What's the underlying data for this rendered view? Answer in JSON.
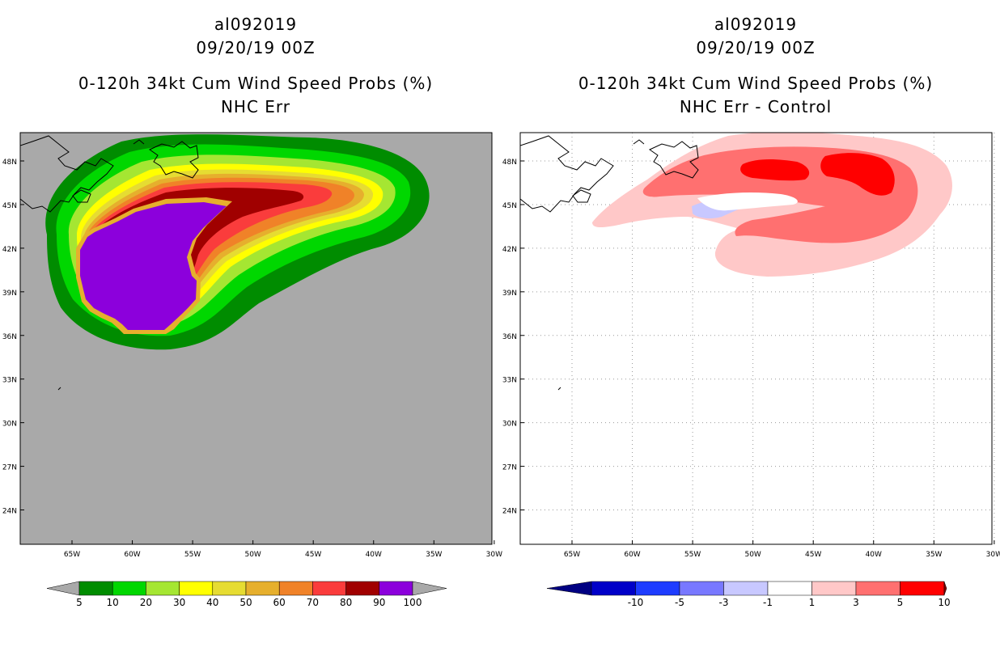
{
  "left_panel": {
    "storm_id": "al092019",
    "datetime": "09/20/19 00Z",
    "title": "0-120h 34kt Cum Wind Speed Probs (%)",
    "subtitle": "NHC Err",
    "colorbar_labels": [
      "5",
      "10",
      "20",
      "30",
      "40",
      "50",
      "60",
      "70",
      "80",
      "90",
      "100"
    ],
    "colorbar_colors": [
      "#008c00",
      "#00d700",
      "#a5e632",
      "#ffff00",
      "#e6dc32",
      "#e6af2d",
      "#f08228",
      "#fa3c3c",
      "#a00000",
      "#8c00dc"
    ],
    "background": "#a9a9a9"
  },
  "right_panel": {
    "storm_id": "al092019",
    "datetime": "09/20/19 00Z",
    "title": "0-120h 34kt Cum Wind Speed Probs (%)",
    "subtitle": "NHC Err - Control",
    "colorbar_labels": [
      "-10",
      "-5",
      "-3",
      "-1",
      "1",
      "3",
      "5",
      "10"
    ],
    "colorbar_colors": [
      "#0000c8",
      "#1e3cff",
      "#7878ff",
      "#c8c8ff",
      "#ffffff",
      "#ffc8c8",
      "#ff7070",
      "#ff0000"
    ],
    "colorbar_end_colors": [
      "#000082",
      "#820000"
    ]
  },
  "map": {
    "lat_labels": [
      "48N",
      "45N",
      "42N",
      "39N",
      "36N",
      "33N",
      "30N",
      "27N",
      "24N"
    ],
    "lon_labels": [
      "65W",
      "60W",
      "55W",
      "50W",
      "45W",
      "40W",
      "35W",
      "30W"
    ],
    "lat_values": [
      48,
      45,
      42,
      39,
      36,
      33,
      30,
      27,
      24
    ],
    "lon_values": [
      -65,
      -60,
      -55,
      -50,
      -45,
      -40,
      -35,
      -30
    ]
  }
}
